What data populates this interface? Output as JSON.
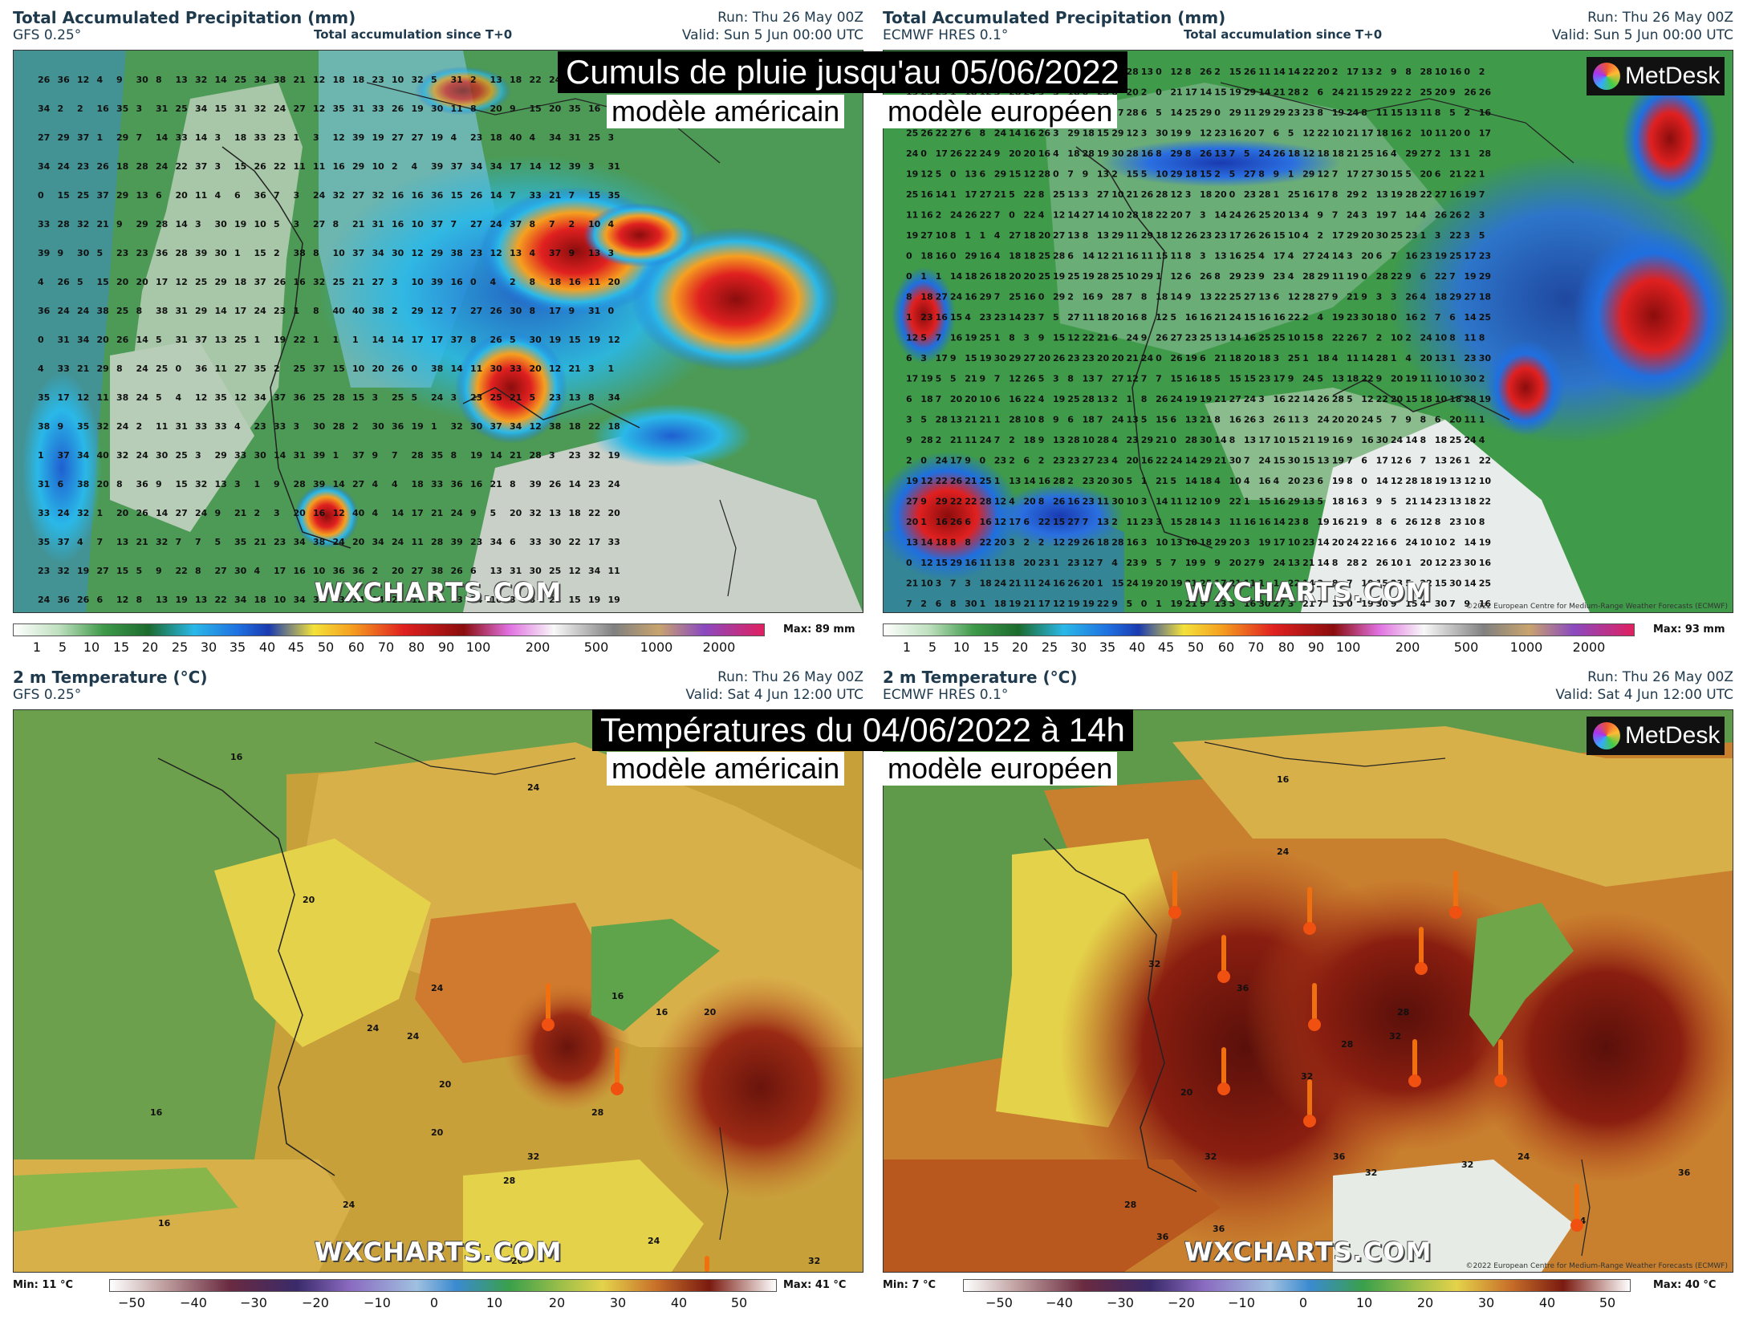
{
  "panels": {
    "top_left": {
      "title": "Total Accumulated Precipitation (mm)",
      "model": "GFS 0.25°",
      "subtitle": "Total accumulation since T+0",
      "run": "Run: Thu 26 May 00Z",
      "valid": "Valid: Sun 5 Jun 00:00 UTC",
      "watermark": "WXCHARTS.COM",
      "max_label": "Max: 89 mm"
    },
    "top_right": {
      "title": "Total Accumulated Precipitation (mm)",
      "model": "ECMWF HRES 0.1°",
      "subtitle": "Total accumulation since T+0",
      "run": "Run: Thu 26 May 00Z",
      "valid": "Valid: Sun 5 Jun 00:00 UTC",
      "watermark": "WXCHARTS.COM",
      "logo": "MetDesk",
      "copyright": "©2022 European Centre for Medium-Range Weather Forecasts (ECMWF)",
      "max_label": "Max: 93 mm"
    },
    "bottom_left": {
      "title": "2 m Temperature (°C)",
      "model": "GFS 0.25°",
      "run": "Run: Thu 26 May 00Z",
      "valid": "Valid: Sat 4 Jun 12:00 UTC",
      "watermark": "WXCHARTS.COM",
      "min_label": "Min: 11 °C",
      "max_label": "Max: 41 °C"
    },
    "bottom_right": {
      "title": "2 m Temperature (°C)",
      "model": "ECMWF HRES 0.1°",
      "run": "Run: Thu 26 May 00Z",
      "valid": "Valid: Sat 4 Jun 12:00 UTC",
      "watermark": "WXCHARTS.COM",
      "logo": "MetDesk",
      "copyright": "©2022 European Centre for Medium-Range Weather Forecasts (ECMWF)",
      "min_label": "Min: 7 °C",
      "max_label": "Max: 40 °C"
    }
  },
  "overlays": {
    "rain_title": "Cumuls de pluie jusqu'au 05/06/2022",
    "temp_title": "Températures du 04/06/2022 à 14h",
    "american": "modèle américain",
    "european": "modèle européen"
  },
  "precip_scale": [
    "1",
    "5",
    "10",
    "15",
    "20",
    "25",
    "30",
    "35",
    "40",
    "45",
    "50",
    "60",
    "70",
    "80",
    "90",
    "100",
    "200",
    "500",
    "1000",
    "2000"
  ],
  "temp_scale": [
    "−50",
    "−40",
    "−30",
    "−20",
    "−10",
    "0",
    "10",
    "20",
    "30",
    "40",
    "50"
  ],
  "colors": {
    "header_text": "#1f3a4d",
    "rain_green": "#3f9a4a",
    "rain_blue": "#1f6fe0",
    "rain_red": "#d32020",
    "temp_green": "#5e9a4a",
    "temp_yellow": "#e4d24a",
    "temp_orange": "#c8702a",
    "temp_darkred": "#7a1a10"
  }
}
